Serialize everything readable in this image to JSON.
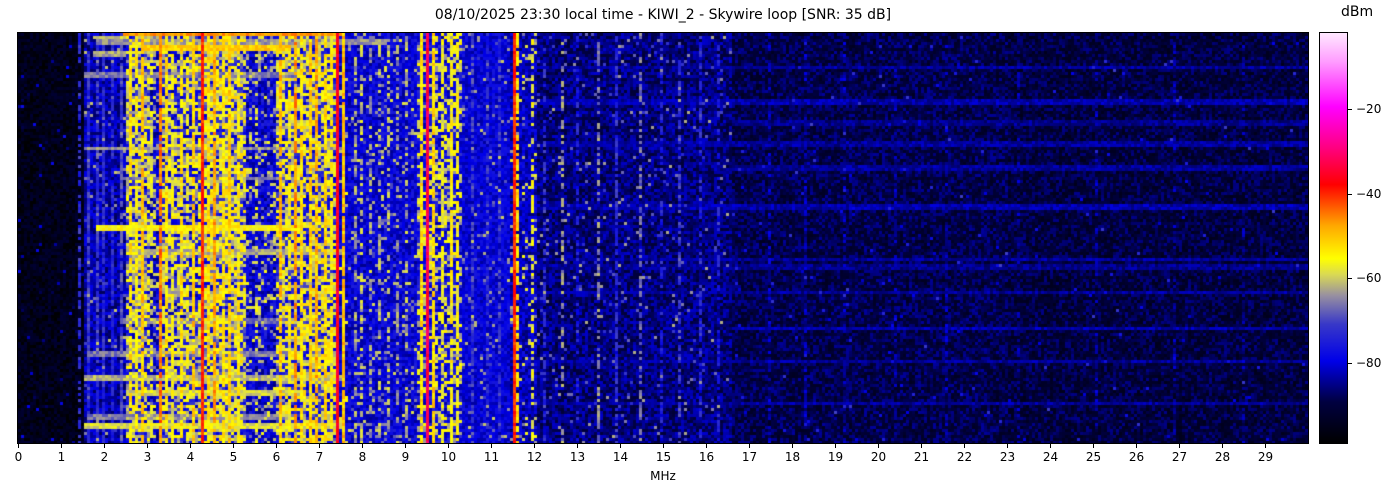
{
  "chart_data": {
    "type": "heatmap",
    "title": "08/10/2025 23:30 local time - KIWI_2 - Skywire loop [SNR: 35 dB]",
    "xlabel": "MHz",
    "x_range": [
      0,
      30
    ],
    "x_ticks": [
      "0",
      "1",
      "2",
      "3",
      "4",
      "5",
      "6",
      "7",
      "8",
      "9",
      "10",
      "11",
      "12",
      "13",
      "14",
      "15",
      "16",
      "17",
      "18",
      "19",
      "20",
      "21",
      "22",
      "23",
      "24",
      "25",
      "26",
      "27",
      "28",
      "29"
    ],
    "value_unit": "dBm",
    "value_range": [
      -99,
      -2
    ],
    "colorbar": {
      "label": "dBm",
      "vmax": -2,
      "vmin": -99,
      "ticks": [
        {
          "label": "−20",
          "value": -20
        },
        {
          "label": "−40",
          "value": -40
        },
        {
          "label": "−60",
          "value": -60
        },
        {
          "label": "−80",
          "value": -80
        }
      ],
      "stops": [
        {
          "t": 0.0,
          "c": "#000000"
        },
        {
          "t": 0.1,
          "c": "#000040"
        },
        {
          "t": 0.2,
          "c": "#0000e8"
        },
        {
          "t": 0.29,
          "c": "#3838c8"
        },
        {
          "t": 0.36,
          "c": "#9890a0"
        },
        {
          "t": 0.41,
          "c": "#d8d855"
        },
        {
          "t": 0.45,
          "c": "#ffff00"
        },
        {
          "t": 0.53,
          "c": "#ffa800"
        },
        {
          "t": 0.63,
          "c": "#ff0000"
        },
        {
          "t": 0.72,
          "c": "#ff0080"
        },
        {
          "t": 0.82,
          "c": "#ff00ff"
        },
        {
          "t": 0.93,
          "c": "#ff9cff"
        },
        {
          "t": 1.0,
          "c": "#ffe8ff"
        }
      ]
    },
    "bands": [
      {
        "from": 0.0,
        "to": 1.55,
        "base": -95,
        "noise": 4,
        "speckle": 0.02,
        "speckle_level": -83
      },
      {
        "from": 1.55,
        "to": 2.5,
        "base": -83,
        "noise": 5,
        "speckle": 0.05,
        "speckle_level": -66
      },
      {
        "from": 2.5,
        "to": 3.1,
        "base": -76,
        "noise": 7,
        "speckle": 0.6,
        "speckle_level": -59
      },
      {
        "from": 3.1,
        "to": 3.35,
        "base": -80,
        "noise": 6,
        "speckle": 0.3,
        "speckle_level": -62
      },
      {
        "from": 3.35,
        "to": 4.2,
        "base": -77,
        "noise": 7,
        "speckle": 0.5,
        "speckle_level": -59
      },
      {
        "from": 4.2,
        "to": 5.3,
        "base": -74,
        "noise": 8,
        "speckle": 0.62,
        "speckle_level": -57
      },
      {
        "from": 5.3,
        "to": 6.0,
        "base": -80,
        "noise": 6,
        "speckle": 0.22,
        "speckle_level": -62
      },
      {
        "from": 6.0,
        "to": 6.45,
        "base": -76,
        "noise": 7,
        "speckle": 0.55,
        "speckle_level": -58
      },
      {
        "from": 6.45,
        "to": 7.38,
        "base": -75,
        "noise": 7,
        "speckle": 0.58,
        "speckle_level": -57
      },
      {
        "from": 7.38,
        "to": 7.65,
        "base": -80,
        "noise": 5,
        "speckle": 0.1,
        "speckle_level": -60
      },
      {
        "from": 7.65,
        "to": 9.3,
        "base": -80,
        "noise": 5,
        "speckle": 0.1,
        "speckle_level": -64
      },
      {
        "from": 9.3,
        "to": 10.35,
        "base": -78,
        "noise": 6,
        "speckle": 0.4,
        "speckle_level": -59
      },
      {
        "from": 10.35,
        "to": 11.45,
        "base": -80,
        "noise": 4,
        "speckle": 0.06,
        "speckle_level": -66
      },
      {
        "from": 11.45,
        "to": 12.1,
        "base": -82,
        "noise": 5,
        "speckle": 0.1,
        "speckle_level": -62
      },
      {
        "from": 12.1,
        "to": 16.6,
        "base": -86,
        "noise": 5,
        "speckle": 0.04,
        "speckle_level": -68
      },
      {
        "from": 16.6,
        "to": 23.0,
        "base": -89,
        "noise": 5,
        "speckle": 0.012,
        "speckle_level": -76
      },
      {
        "from": 23.0,
        "to": 30.01,
        "base": -90,
        "noise": 5,
        "speckle": 0.006,
        "speckle_level": -76
      }
    ],
    "stripes": [
      {
        "freq": 1.43,
        "width": 0.03,
        "level": -73,
        "duty": 0.6
      },
      {
        "freq": 1.66,
        "width": 0.035,
        "level": -72,
        "duty": 0.9
      },
      {
        "freq": 1.84,
        "width": 0.035,
        "level": -72,
        "duty": 0.85
      },
      {
        "freq": 2.02,
        "width": 0.035,
        "level": -73,
        "duty": 0.85
      },
      {
        "freq": 2.2,
        "width": 0.035,
        "level": -74,
        "duty": 0.8
      },
      {
        "freq": 2.38,
        "width": 0.03,
        "level": -70,
        "duty": 0.85
      },
      {
        "freq": 2.62,
        "width": 0.05,
        "level": -53,
        "duty": 0.7
      },
      {
        "freq": 2.78,
        "width": 0.04,
        "level": -55,
        "duty": 0.7
      },
      {
        "freq": 2.92,
        "width": 0.05,
        "level": -50,
        "duty": 0.8
      },
      {
        "freq": 3.12,
        "width": 0.04,
        "level": -58,
        "duty": 0.55
      },
      {
        "freq": 3.3,
        "width": 0.05,
        "level": -45,
        "duty": 0.9
      },
      {
        "freq": 3.45,
        "width": 0.05,
        "level": -53,
        "duty": 0.75
      },
      {
        "freq": 3.62,
        "width": 0.04,
        "level": -56,
        "duty": 0.6
      },
      {
        "freq": 3.82,
        "width": 0.05,
        "level": -53,
        "duty": 0.7
      },
      {
        "freq": 3.97,
        "width": 0.04,
        "level": -56,
        "duty": 0.55
      },
      {
        "freq": 4.1,
        "width": 0.04,
        "level": -51,
        "duty": 0.75
      },
      {
        "freq": 4.27,
        "width": 0.09,
        "level": -40,
        "duty": 1
      },
      {
        "freq": 4.45,
        "width": 0.05,
        "level": -53,
        "duty": 0.8
      },
      {
        "freq": 4.6,
        "width": 0.04,
        "level": -48,
        "duty": 0.85
      },
      {
        "freq": 4.78,
        "width": 0.05,
        "level": -54,
        "duty": 0.75
      },
      {
        "freq": 4.95,
        "width": 0.04,
        "level": -51,
        "duty": 0.8
      },
      {
        "freq": 5.12,
        "width": 0.05,
        "level": -55,
        "duty": 0.7
      },
      {
        "freq": 5.55,
        "width": 0.04,
        "level": -58,
        "duty": 0.3
      },
      {
        "freq": 6.1,
        "width": 0.05,
        "level": -50,
        "duty": 0.8
      },
      {
        "freq": 6.28,
        "width": 0.04,
        "level": -55,
        "duty": 0.6
      },
      {
        "freq": 6.45,
        "width": 0.04,
        "level": -47,
        "duty": 0.8
      },
      {
        "freq": 6.62,
        "width": 0.04,
        "level": -53,
        "duty": 0.75
      },
      {
        "freq": 6.8,
        "width": 0.04,
        "level": -51,
        "duty": 0.8
      },
      {
        "freq": 6.95,
        "width": 0.05,
        "level": -49,
        "duty": 0.85
      },
      {
        "freq": 7.12,
        "width": 0.04,
        "level": -52,
        "duty": 0.8
      },
      {
        "freq": 7.27,
        "width": 0.04,
        "level": -55,
        "duty": 0.65
      },
      {
        "freq": 7.44,
        "width": 0.09,
        "level": -36,
        "duty": 1
      },
      {
        "freq": 7.6,
        "width": 0.05,
        "level": -50,
        "duty": 0.95
      },
      {
        "freq": 7.82,
        "width": 0.04,
        "level": -63,
        "duty": 0.5
      },
      {
        "freq": 8.0,
        "width": 0.035,
        "level": -61,
        "duty": 0.5
      },
      {
        "freq": 8.17,
        "width": 0.035,
        "level": -64,
        "duty": 0.45
      },
      {
        "freq": 8.38,
        "width": 0.035,
        "level": -62,
        "duty": 0.5
      },
      {
        "freq": 8.62,
        "width": 0.035,
        "level": -61,
        "duty": 0.5
      },
      {
        "freq": 8.83,
        "width": 0.035,
        "level": -64,
        "duty": 0.4
      },
      {
        "freq": 9.05,
        "width": 0.035,
        "level": -62,
        "duty": 0.45
      },
      {
        "freq": 9.35,
        "width": 0.06,
        "level": -53,
        "duty": 0.85
      },
      {
        "freq": 9.5,
        "width": 0.08,
        "level": -33,
        "duty": 1
      },
      {
        "freq": 9.65,
        "width": 0.06,
        "level": -52,
        "duty": 0.9
      },
      {
        "freq": 9.85,
        "width": 0.05,
        "level": -57,
        "duty": 0.7
      },
      {
        "freq": 10.05,
        "width": 0.05,
        "level": -55,
        "duty": 0.75
      },
      {
        "freq": 10.25,
        "width": 0.05,
        "level": -56,
        "duty": 0.7
      },
      {
        "freq": 10.6,
        "width": 0.035,
        "level": -71,
        "duty": 0.7
      },
      {
        "freq": 10.9,
        "width": 0.035,
        "level": -73,
        "duty": 0.6
      },
      {
        "freq": 11.2,
        "width": 0.035,
        "level": -72,
        "duty": 0.6
      },
      {
        "freq": 11.52,
        "width": 0.08,
        "level": -40,
        "duty": 1
      },
      {
        "freq": 11.65,
        "width": 0.05,
        "level": -53,
        "duty": 0.7
      },
      {
        "freq": 11.98,
        "width": 0.05,
        "level": -57,
        "duty": 0.6
      },
      {
        "freq": 12.25,
        "width": 0.03,
        "level": -73,
        "duty": 0.5
      },
      {
        "freq": 12.67,
        "width": 0.035,
        "level": -64,
        "duty": 0.5
      },
      {
        "freq": 13.0,
        "width": 0.03,
        "level": -75,
        "duty": 0.5
      },
      {
        "freq": 13.5,
        "width": 0.035,
        "level": -65,
        "duty": 0.5
      },
      {
        "freq": 13.9,
        "width": 0.035,
        "level": -73,
        "duty": 0.7
      },
      {
        "freq": 14.5,
        "width": 0.035,
        "level": -67,
        "duty": 0.5
      },
      {
        "freq": 14.95,
        "width": 0.03,
        "level": -74,
        "duty": 0.5
      },
      {
        "freq": 15.35,
        "width": 0.03,
        "level": -71,
        "duty": 0.6
      },
      {
        "freq": 15.9,
        "width": 0.03,
        "level": -74,
        "duty": 0.5
      },
      {
        "freq": 16.3,
        "width": 0.03,
        "level": -75,
        "duty": 0.4
      },
      {
        "freq": 17.5,
        "width": 0.03,
        "level": -82,
        "duty": 0.5
      },
      {
        "freq": 18.3,
        "width": 0.03,
        "level": -83,
        "duty": 0.5
      },
      {
        "freq": 19.2,
        "width": 0.03,
        "level": -83,
        "duty": 0.4
      },
      {
        "freq": 20.4,
        "width": 0.03,
        "level": -84,
        "duty": 0.4
      },
      {
        "freq": 21.6,
        "width": 0.03,
        "level": -83,
        "duty": 0.4
      },
      {
        "freq": 23.3,
        "width": 0.03,
        "level": -84,
        "duty": 0.4
      },
      {
        "freq": 25.1,
        "width": 0.03,
        "level": -84,
        "duty": 0.35
      },
      {
        "freq": 26.9,
        "width": 0.03,
        "level": -84,
        "duty": 0.35
      },
      {
        "freq": 28.5,
        "width": 0.03,
        "level": -84,
        "duty": 0.35
      }
    ],
    "streaks": [
      {
        "t": 0.004,
        "from": 2.45,
        "to": 7.5,
        "level": -47
      },
      {
        "t": 0.012,
        "from": 1.72,
        "to": 2.48,
        "level": -60
      },
      {
        "t": 0.02,
        "from": 1.8,
        "to": 8.6,
        "level": -64
      },
      {
        "t": 0.035,
        "from": 2.9,
        "to": 6.35,
        "level": -51
      },
      {
        "t": 0.05,
        "from": 1.72,
        "to": 2.48,
        "level": -63
      },
      {
        "t": 0.1,
        "from": 1.55,
        "to": 6.6,
        "level": -66
      },
      {
        "t": 0.28,
        "from": 1.55,
        "to": 7.6,
        "level": -64
      },
      {
        "t": 0.355,
        "from": 2.4,
        "to": 6.5,
        "level": -68
      },
      {
        "t": 0.476,
        "from": 1.8,
        "to": 6.6,
        "level": -55
      },
      {
        "t": 0.535,
        "from": 2.5,
        "to": 7.5,
        "level": -63
      },
      {
        "t": 0.7,
        "from": 2.4,
        "to": 6.3,
        "level": -67
      },
      {
        "t": 0.78,
        "from": 1.6,
        "to": 6.4,
        "level": -66
      },
      {
        "t": 0.84,
        "from": 1.55,
        "to": 7.55,
        "level": -62
      },
      {
        "t": 0.875,
        "from": 2.5,
        "to": 6.5,
        "level": -60
      },
      {
        "t": 0.935,
        "from": 1.6,
        "to": 6.4,
        "level": -66
      },
      {
        "t": 0.955,
        "from": 1.55,
        "to": 7.5,
        "level": -59
      },
      {
        "t": 0.085,
        "from": 7.65,
        "to": 30,
        "level": -84
      },
      {
        "t": 0.17,
        "from": 12.1,
        "to": 30,
        "level": -83
      },
      {
        "t": 0.22,
        "from": 16.6,
        "to": 30,
        "level": -85
      },
      {
        "t": 0.27,
        "from": 7.65,
        "to": 30,
        "level": -84
      },
      {
        "t": 0.33,
        "from": 16.6,
        "to": 30,
        "level": -84
      },
      {
        "t": 0.425,
        "from": 7.65,
        "to": 30,
        "level": -83
      },
      {
        "t": 0.55,
        "from": 12.1,
        "to": 30,
        "level": -84
      },
      {
        "t": 0.57,
        "from": 7.65,
        "to": 30,
        "level": -85
      },
      {
        "t": 0.63,
        "from": 7.65,
        "to": 30,
        "level": -84
      },
      {
        "t": 0.72,
        "from": 16.6,
        "to": 30,
        "level": -83
      },
      {
        "t": 0.8,
        "from": 7.65,
        "to": 30,
        "level": -84
      },
      {
        "t": 0.9,
        "from": 12.1,
        "to": 30,
        "level": -84
      }
    ]
  }
}
